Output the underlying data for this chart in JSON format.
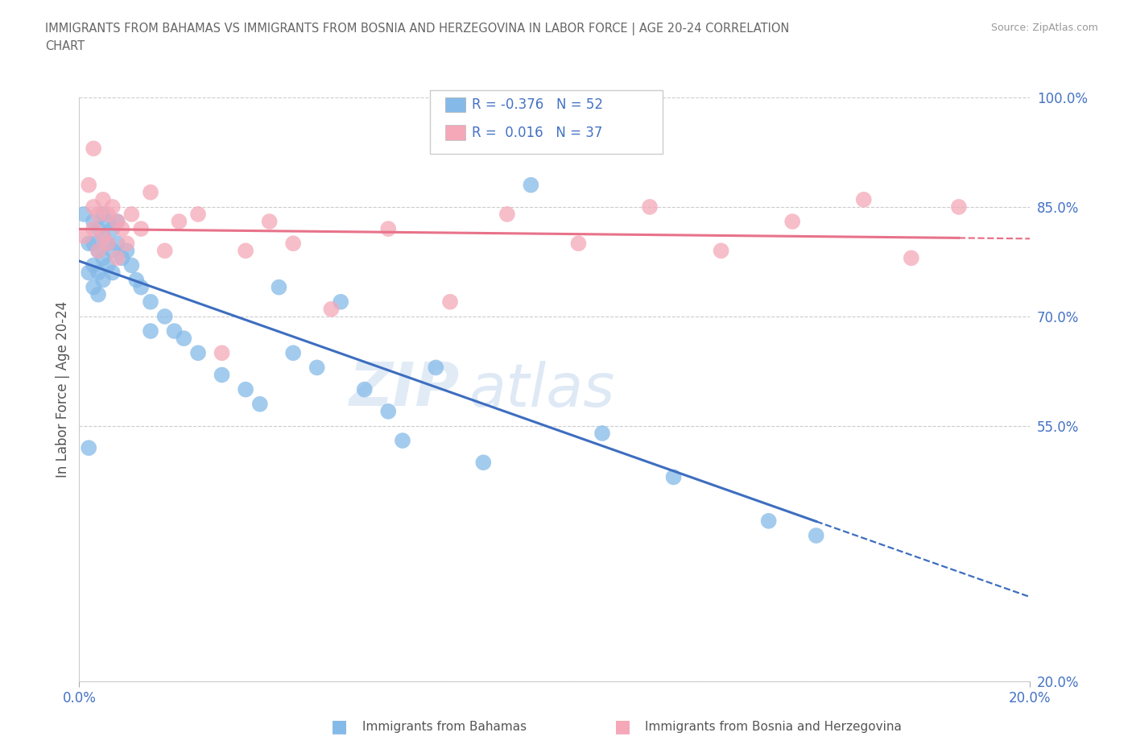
{
  "title": "IMMIGRANTS FROM BAHAMAS VS IMMIGRANTS FROM BOSNIA AND HERZEGOVINA IN LABOR FORCE | AGE 20-24 CORRELATION\nCHART",
  "source_text": "Source: ZipAtlas.com",
  "ylabel": "In Labor Force | Age 20-24",
  "legend_label_1": "Immigrants from Bahamas",
  "legend_label_2": "Immigrants from Bosnia and Herzegovina",
  "r1": -0.376,
  "n1": 52,
  "r2": 0.016,
  "n2": 37,
  "xlim": [
    0.0,
    0.2
  ],
  "ylim": [
    0.2,
    1.0
  ],
  "yticks": [
    0.2,
    0.55,
    0.7,
    0.85,
    1.0
  ],
  "ytick_labels": [
    "20.0%",
    "55.0%",
    "70.0%",
    "85.0%",
    "100.0%"
  ],
  "xticks": [
    0.0,
    0.2
  ],
  "xtick_labels": [
    "0.0%",
    "20.0%"
  ],
  "color_blue": "#85BAE8",
  "color_pink": "#F4A8B8",
  "line_blue": "#3D6EBF",
  "line_pink": "#E8728A",
  "blue_x": [
    0.001,
    0.002,
    0.002,
    0.002,
    0.003,
    0.003,
    0.003,
    0.003,
    0.004,
    0.004,
    0.004,
    0.004,
    0.005,
    0.005,
    0.005,
    0.005,
    0.006,
    0.006,
    0.006,
    0.007,
    0.007,
    0.007,
    0.008,
    0.008,
    0.009,
    0.01,
    0.011,
    0.012,
    0.013,
    0.015,
    0.018,
    0.02,
    0.022,
    0.025,
    0.03,
    0.035,
    0.038,
    0.042,
    0.045,
    0.05,
    0.055,
    0.06,
    0.065,
    0.068,
    0.075,
    0.085,
    0.095,
    0.11,
    0.125,
    0.145,
    0.155,
    0.015
  ],
  "blue_y": [
    0.84,
    0.8,
    0.76,
    0.52,
    0.83,
    0.8,
    0.77,
    0.74,
    0.82,
    0.79,
    0.76,
    0.73,
    0.84,
    0.81,
    0.78,
    0.75,
    0.83,
    0.8,
    0.77,
    0.82,
    0.79,
    0.76,
    0.83,
    0.8,
    0.78,
    0.79,
    0.77,
    0.75,
    0.74,
    0.72,
    0.7,
    0.68,
    0.67,
    0.65,
    0.62,
    0.6,
    0.58,
    0.74,
    0.65,
    0.63,
    0.72,
    0.6,
    0.57,
    0.53,
    0.63,
    0.5,
    0.88,
    0.54,
    0.48,
    0.42,
    0.4,
    0.68
  ],
  "pink_x": [
    0.001,
    0.002,
    0.003,
    0.003,
    0.004,
    0.004,
    0.005,
    0.005,
    0.006,
    0.006,
    0.007,
    0.008,
    0.009,
    0.01,
    0.011,
    0.013,
    0.015,
    0.018,
    0.021,
    0.025,
    0.03,
    0.035,
    0.04,
    0.045,
    0.053,
    0.065,
    0.078,
    0.09,
    0.105,
    0.12,
    0.135,
    0.15,
    0.165,
    0.175,
    0.185,
    0.003,
    0.008
  ],
  "pink_y": [
    0.81,
    0.88,
    0.85,
    0.82,
    0.84,
    0.79,
    0.86,
    0.81,
    0.84,
    0.8,
    0.85,
    0.83,
    0.82,
    0.8,
    0.84,
    0.82,
    0.87,
    0.79,
    0.83,
    0.84,
    0.65,
    0.79,
    0.83,
    0.8,
    0.71,
    0.82,
    0.72,
    0.84,
    0.8,
    0.85,
    0.79,
    0.83,
    0.86,
    0.78,
    0.85,
    0.93,
    0.78
  ]
}
